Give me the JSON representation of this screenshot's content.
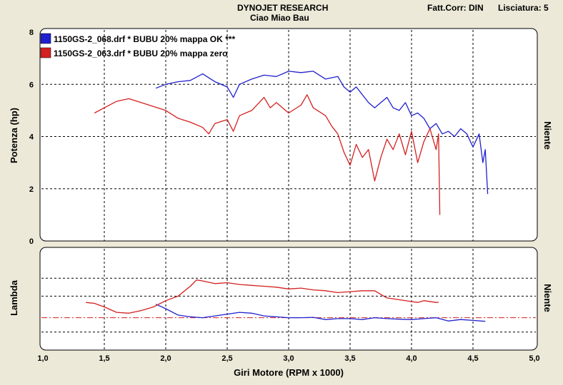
{
  "header": {
    "title": "DYNOJET RESEARCH",
    "subtitle": "Ciao Miao Bau",
    "correction": "Fatt.Corr: DIN",
    "smoothing": "Lisciatura: 5"
  },
  "colors": {
    "series1": "#1f1fcf",
    "series2": "#d42020",
    "frame_bg": "#ffffff",
    "page_bg": "#ece9d8"
  },
  "chart_data": [
    {
      "type": "line",
      "xlabel": "Giri Motore (RPM x 1000)",
      "ylabel": "Potenza (hp)",
      "right_label": "Niente",
      "xlim": [
        1.0,
        5.0
      ],
      "ylim": [
        0,
        8
      ],
      "x_ticks": [
        "1,0",
        "1,5",
        "2,0",
        "2,5",
        "3,0",
        "3,5",
        "4,0",
        "4,5",
        "5,0"
      ],
      "y_ticks": [
        "0",
        "2",
        "4",
        "6",
        "8"
      ],
      "grid": true,
      "legend_position": "top-left",
      "series": [
        {
          "name": "1150GS-2_068.drf * BUBU 20% mappa OK ***",
          "color": "#1f1fcf",
          "x": [
            1.92,
            2.0,
            2.1,
            2.2,
            2.3,
            2.4,
            2.5,
            2.55,
            2.6,
            2.7,
            2.8,
            2.9,
            3.0,
            3.1,
            3.2,
            3.3,
            3.4,
            3.45,
            3.5,
            3.55,
            3.6,
            3.65,
            3.7,
            3.75,
            3.8,
            3.85,
            3.9,
            3.95,
            4.0,
            4.05,
            4.1,
            4.15,
            4.2,
            4.25,
            4.3,
            4.35,
            4.4,
            4.45,
            4.5,
            4.55,
            4.58,
            4.6,
            4.62
          ],
          "y": [
            5.85,
            6.0,
            6.1,
            6.15,
            6.4,
            6.1,
            5.9,
            5.5,
            6.0,
            6.2,
            6.35,
            6.3,
            6.5,
            6.45,
            6.5,
            6.2,
            6.3,
            5.9,
            5.7,
            5.9,
            5.6,
            5.3,
            5.1,
            5.3,
            5.5,
            5.1,
            5.0,
            5.3,
            4.8,
            4.9,
            4.7,
            4.3,
            4.5,
            4.1,
            4.2,
            4.0,
            4.3,
            4.1,
            3.6,
            4.1,
            3.0,
            3.5,
            1.8
          ]
        },
        {
          "name": "1150GS-2_063.drf * BUBU 20% mappa zero",
          "color": "#d42020",
          "x": [
            1.42,
            1.5,
            1.6,
            1.7,
            1.8,
            1.9,
            2.0,
            2.1,
            2.2,
            2.3,
            2.35,
            2.4,
            2.5,
            2.55,
            2.6,
            2.7,
            2.8,
            2.85,
            2.9,
            3.0,
            3.1,
            3.15,
            3.2,
            3.3,
            3.35,
            3.4,
            3.45,
            3.5,
            3.55,
            3.6,
            3.65,
            3.7,
            3.75,
            3.8,
            3.85,
            3.9,
            3.95,
            4.0,
            4.05,
            4.1,
            4.15,
            4.2,
            4.22,
            4.23
          ],
          "y": [
            4.9,
            5.1,
            5.35,
            5.45,
            5.3,
            5.15,
            5.0,
            4.7,
            4.55,
            4.35,
            4.1,
            4.5,
            4.65,
            4.2,
            4.8,
            5.0,
            5.5,
            5.1,
            5.3,
            4.9,
            5.2,
            5.6,
            5.1,
            4.8,
            4.4,
            4.1,
            3.4,
            2.9,
            3.7,
            3.2,
            3.5,
            2.3,
            3.2,
            3.9,
            3.5,
            4.1,
            3.3,
            4.2,
            3.0,
            3.8,
            4.3,
            3.5,
            4.1,
            1.0
          ]
        }
      ]
    },
    {
      "type": "line",
      "xlabel": "Giri Motore (RPM x 1000)",
      "ylabel": "Lambda",
      "right_label": "Niente",
      "xlim": [
        1.0,
        5.0
      ],
      "ylim": [
        0.7,
        1.2
      ],
      "grid": true,
      "reference_line": 0.88,
      "series": [
        {
          "name": "1150GS-2_068.drf * BUBU 20% mappa OK ***",
          "color": "#1f1fcf",
          "x": [
            1.92,
            2.0,
            2.1,
            2.2,
            2.3,
            2.4,
            2.5,
            2.6,
            2.7,
            2.8,
            2.9,
            3.0,
            3.1,
            3.2,
            3.3,
            3.4,
            3.5,
            3.6,
            3.7,
            3.8,
            3.9,
            4.0,
            4.1,
            4.2,
            4.3,
            4.4,
            4.5,
            4.6
          ],
          "y": [
            0.955,
            0.93,
            0.895,
            0.885,
            0.88,
            0.89,
            0.9,
            0.91,
            0.905,
            0.89,
            0.885,
            0.88,
            0.88,
            0.882,
            0.87,
            0.875,
            0.875,
            0.87,
            0.88,
            0.875,
            0.872,
            0.87,
            0.875,
            0.88,
            0.862,
            0.87,
            0.865,
            0.86
          ]
        },
        {
          "name": "1150GS-2_063.drf * BUBU 20% mappa zero",
          "color": "#d42020",
          "x": [
            1.35,
            1.42,
            1.5,
            1.6,
            1.7,
            1.8,
            1.9,
            2.0,
            2.1,
            2.2,
            2.25,
            2.3,
            2.4,
            2.5,
            2.6,
            2.7,
            2.8,
            2.9,
            3.0,
            3.1,
            3.2,
            3.3,
            3.4,
            3.5,
            3.6,
            3.7,
            3.8,
            3.9,
            4.0,
            4.05,
            4.1,
            4.2,
            4.22
          ],
          "y": [
            0.965,
            0.96,
            0.94,
            0.91,
            0.905,
            0.92,
            0.94,
            0.975,
            1.0,
            1.055,
            1.09,
            1.085,
            1.07,
            1.075,
            1.065,
            1.06,
            1.055,
            1.05,
            1.04,
            1.045,
            1.035,
            1.03,
            1.02,
            1.025,
            1.03,
            1.03,
            0.99,
            0.98,
            0.97,
            0.965,
            0.975,
            0.965,
            0.965
          ]
        }
      ]
    }
  ]
}
